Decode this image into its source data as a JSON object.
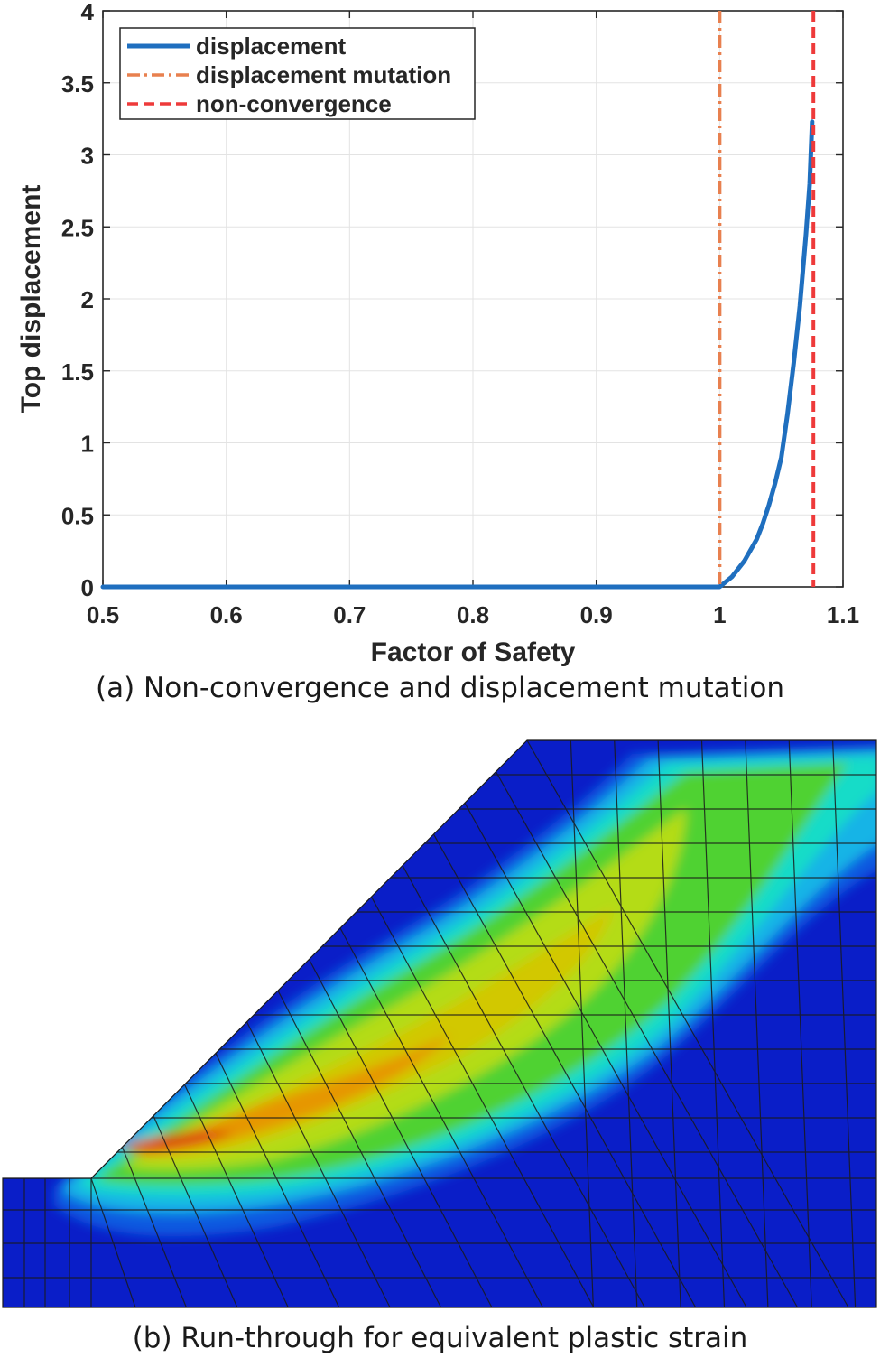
{
  "chart_data": {
    "type": "line",
    "title": "",
    "xlabel": "Factor of Safety",
    "ylabel": "Top displacement",
    "xlim": [
      0.5,
      1.1
    ],
    "ylim": [
      0,
      4
    ],
    "xticks": [
      0.5,
      0.6,
      0.7,
      0.8,
      0.9,
      1.0,
      1.1
    ],
    "xtick_labels": [
      "0.5",
      "0.6",
      "0.7",
      "0.8",
      "0.9",
      "1",
      "1.1"
    ],
    "yticks": [
      0,
      0.5,
      1,
      1.5,
      2,
      2.5,
      3,
      3.5,
      4
    ],
    "ytick_labels": [
      "0",
      "0.5",
      "1",
      "1.5",
      "2",
      "2.5",
      "3",
      "3.5",
      "4"
    ],
    "grid": true,
    "legend_position": "top-left",
    "series": [
      {
        "name": "displacement",
        "style": "solid",
        "color": "#1f6fbf",
        "x": [
          0.5,
          0.6,
          0.7,
          0.8,
          0.9,
          0.99,
          1.0,
          1.01,
          1.02,
          1.03,
          1.035,
          1.04,
          1.045,
          1.05,
          1.055,
          1.06,
          1.065,
          1.07,
          1.073,
          1.075
        ],
        "y": [
          0,
          0,
          0,
          0,
          0,
          0,
          0,
          0.07,
          0.18,
          0.33,
          0.44,
          0.57,
          0.72,
          0.9,
          1.2,
          1.55,
          1.95,
          2.45,
          2.8,
          3.23
        ]
      },
      {
        "name": "displacement mutation",
        "style": "dashdot",
        "color": "#e8804f",
        "x_value": 1.0
      },
      {
        "name": "non-convergence",
        "style": "dashed",
        "color": "#ee3a3a",
        "x_value": 1.076
      }
    ]
  },
  "captions": {
    "a": "(a) Non-convergence and displacement mutation",
    "b": "(b) Run-through for equivalent plastic strain"
  },
  "fem_figure": {
    "name": "equivalent-plastic-strain-contour",
    "colors": [
      "#0a1ec8",
      "#0a5ae0",
      "#14b4e6",
      "#14dcc8",
      "#50d232",
      "#b4dc14",
      "#d2c800",
      "#e69600",
      "#dc3c0a"
    ]
  }
}
